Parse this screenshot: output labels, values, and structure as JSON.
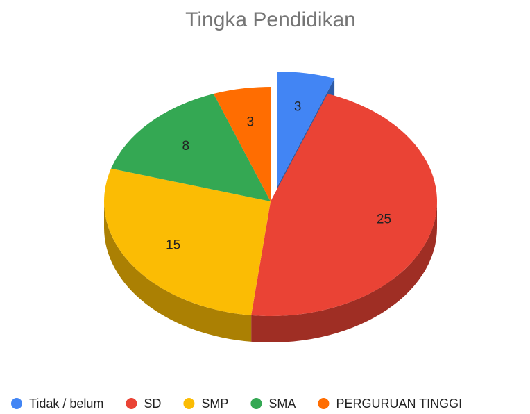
{
  "chart_data": {
    "type": "pie",
    "title": "Tingka Pendidikan",
    "categories": [
      "Tidak / belum",
      "SD",
      "SMP",
      "SMA",
      "PERGURUAN TINGGI"
    ],
    "values": [
      3,
      25,
      15,
      8,
      3
    ],
    "colors": [
      "#4285f4",
      "#ea4335",
      "#fbbc04",
      "#34a853",
      "#ff6d01"
    ],
    "three_d": true,
    "exploded": [
      0
    ],
    "legend": "bottom"
  }
}
